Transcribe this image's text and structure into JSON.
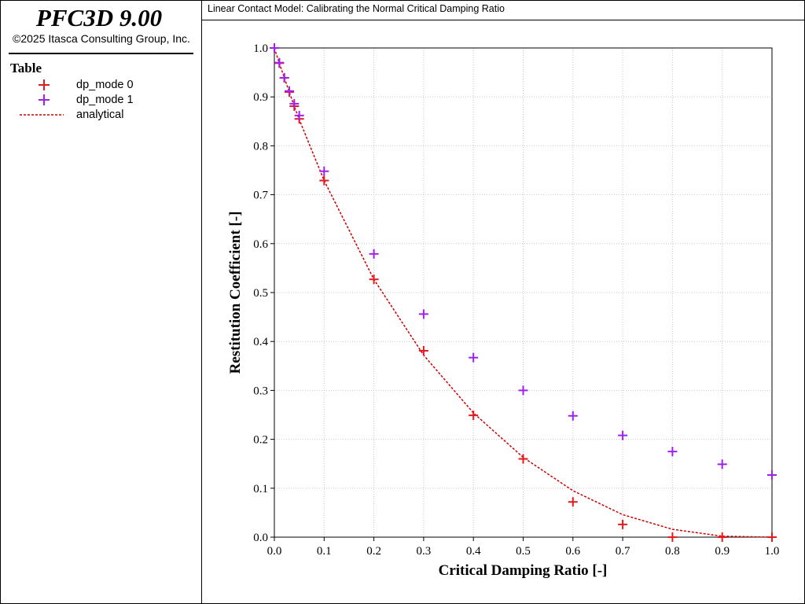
{
  "app": {
    "title": "PFC3D 9.00",
    "copyright": "©2025 Itasca Consulting Group, Inc."
  },
  "legend": {
    "heading": "Table",
    "items": [
      {
        "label": "dp_mode 0",
        "symbol": "plus",
        "color": "#e41a1c"
      },
      {
        "label": "dp_mode 1",
        "symbol": "plus",
        "color": "#a020f0"
      },
      {
        "label": "analytical",
        "symbol": "dashed-line",
        "color": "#cc0000"
      }
    ]
  },
  "chart_data": {
    "type": "scatter",
    "title": "Linear Contact Model: Calibrating the Normal Critical Damping Ratio",
    "xlabel": "Critical Damping Ratio [-]",
    "ylabel": "Restitution Coefficient [-]",
    "xlim": [
      0,
      1
    ],
    "ylim": [
      0,
      1
    ],
    "xticks": [
      "0.0",
      "0.1",
      "0.2",
      "0.3",
      "0.4",
      "0.5",
      "0.6",
      "0.7",
      "0.8",
      "0.9",
      "1.0"
    ],
    "yticks": [
      "0.0",
      "0.1",
      "0.2",
      "0.3",
      "0.4",
      "0.5",
      "0.6",
      "0.7",
      "0.8",
      "0.9",
      "1.0"
    ],
    "grid": true,
    "series": [
      {
        "name": "dp_mode 0",
        "marker": "plus",
        "color": "#e41a1c",
        "x": [
          0,
          0.01,
          0.02,
          0.03,
          0.04,
          0.05,
          0.1,
          0.2,
          0.3,
          0.4,
          0.5,
          0.6,
          0.7,
          0.8,
          0.9,
          1.0
        ],
        "y": [
          1.0,
          0.969,
          0.939,
          0.91,
          0.881,
          0.855,
          0.729,
          0.527,
          0.381,
          0.249,
          0.16,
          0.072,
          0.026,
          0.0,
          0.0,
          0.0
        ]
      },
      {
        "name": "dp_mode 1",
        "marker": "plus",
        "color": "#a020f0",
        "x": [
          0,
          0.01,
          0.02,
          0.03,
          0.04,
          0.05,
          0.1,
          0.2,
          0.3,
          0.4,
          0.5,
          0.6,
          0.7,
          0.8,
          0.9,
          1.0
        ],
        "y": [
          1.0,
          0.97,
          0.939,
          0.912,
          0.886,
          0.862,
          0.748,
          0.579,
          0.456,
          0.367,
          0.3,
          0.248,
          0.208,
          0.175,
          0.149,
          0.127
        ]
      },
      {
        "name": "analytical",
        "marker": "dashed-line",
        "color": "#cc0000",
        "x": [
          0,
          0.01,
          0.02,
          0.03,
          0.04,
          0.05,
          0.1,
          0.2,
          0.3,
          0.4,
          0.5,
          0.6,
          0.7,
          0.8,
          0.9,
          1.0
        ],
        "y": [
          1.0,
          0.969,
          0.939,
          0.91,
          0.881,
          0.854,
          0.729,
          0.527,
          0.372,
          0.254,
          0.163,
          0.095,
          0.046,
          0.016,
          0.002,
          0.0
        ]
      }
    ]
  }
}
